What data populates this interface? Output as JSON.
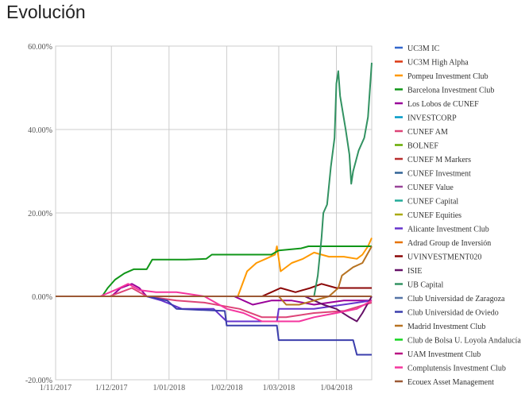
{
  "chart_data": {
    "type": "line",
    "title": "Evolución",
    "xlabel": "",
    "ylabel": "",
    "x_ticks": [
      "1/11/2017",
      "1/12/2017",
      "1/01/2018",
      "1/02/2018",
      "1/03/2018",
      "1/04/2018"
    ],
    "y_ticks": [
      "60.00%",
      "40.00%",
      "20.00%",
      "0.00%",
      "-20.00%"
    ],
    "x_range": [
      "2017-11-01",
      "2018-04-20"
    ],
    "ylim": [
      -20,
      60
    ],
    "grid": true,
    "legend_position": "right",
    "series": [
      {
        "name": "UC3M IC",
        "color": "#3366cc",
        "points": [
          [
            "2017-11-01",
            0
          ],
          [
            "2018-04-20",
            0
          ]
        ]
      },
      {
        "name": "UC3M High Alpha",
        "color": "#dc3912",
        "points": [
          [
            "2017-11-01",
            0
          ],
          [
            "2018-04-20",
            0
          ]
        ]
      },
      {
        "name": "Pompeu Investment Club",
        "color": "#ff9900",
        "points": [
          [
            "2017-11-01",
            0
          ],
          [
            "2018-02-07",
            0
          ],
          [
            "2018-02-12",
            6
          ],
          [
            "2018-02-17",
            8
          ],
          [
            "2018-02-22",
            9
          ],
          [
            "2018-02-27",
            10
          ],
          [
            "2018-02-28",
            12
          ],
          [
            "2018-03-02",
            6
          ],
          [
            "2018-03-08",
            8
          ],
          [
            "2018-03-14",
            9
          ],
          [
            "2018-03-20",
            10.5
          ],
          [
            "2018-03-28",
            9.5
          ],
          [
            "2018-04-05",
            9.5
          ],
          [
            "2018-04-12",
            9
          ],
          [
            "2018-04-15",
            10
          ],
          [
            "2018-04-18",
            12
          ],
          [
            "2018-04-20",
            14
          ]
        ]
      },
      {
        "name": "Barcelona Investment Club",
        "color": "#109618",
        "points": [
          [
            "2017-11-01",
            0
          ],
          [
            "2017-11-26",
            0
          ],
          [
            "2017-11-29",
            2
          ],
          [
            "2017-12-03",
            4
          ],
          [
            "2017-12-08",
            5.5
          ],
          [
            "2017-12-13",
            6.5
          ],
          [
            "2017-12-20",
            6.5
          ],
          [
            "2017-12-23",
            8.8
          ],
          [
            "2018-01-10",
            8.8
          ],
          [
            "2018-01-21",
            9
          ],
          [
            "2018-01-24",
            10
          ],
          [
            "2018-02-25",
            10
          ],
          [
            "2018-03-01",
            11
          ],
          [
            "2018-03-13",
            11.5
          ],
          [
            "2018-03-17",
            12
          ],
          [
            "2018-04-20",
            12
          ]
        ]
      },
      {
        "name": "Los Lobos de CUNEF",
        "color": "#990099",
        "points": [
          [
            "2017-11-01",
            0
          ],
          [
            "2017-12-01",
            0
          ],
          [
            "2017-12-06",
            2
          ],
          [
            "2017-12-12",
            3
          ],
          [
            "2017-12-16",
            2
          ],
          [
            "2017-12-20",
            0
          ],
          [
            "2018-02-05",
            0
          ],
          [
            "2018-02-15",
            -2
          ],
          [
            "2018-02-25",
            -1
          ],
          [
            "2018-03-08",
            -1
          ],
          [
            "2018-03-20",
            -2
          ],
          [
            "2018-04-05",
            -1
          ],
          [
            "2018-04-20",
            -1
          ]
        ]
      },
      {
        "name": "INVESTCORP",
        "color": "#0099c6",
        "points": [
          [
            "2017-11-01",
            0
          ],
          [
            "2018-04-20",
            0
          ]
        ]
      },
      {
        "name": "CUNEF AM",
        "color": "#dd4477",
        "points": [
          [
            "2017-11-01",
            0
          ],
          [
            "2017-11-30",
            0
          ],
          [
            "2017-12-06",
            1
          ],
          [
            "2017-12-12",
            2
          ],
          [
            "2017-12-20",
            0
          ],
          [
            "2018-01-05",
            -1
          ],
          [
            "2018-01-20",
            -1.5
          ],
          [
            "2018-02-08",
            -3
          ],
          [
            "2018-02-20",
            -5
          ],
          [
            "2018-03-05",
            -5
          ],
          [
            "2018-03-20",
            -4
          ],
          [
            "2018-04-05",
            -3.5
          ],
          [
            "2018-04-20",
            -1.5
          ]
        ]
      },
      {
        "name": "BOLNEF",
        "color": "#66aa00",
        "points": [
          [
            "2017-11-01",
            0
          ],
          [
            "2018-04-20",
            0
          ]
        ]
      },
      {
        "name": "CUNEF M Markers",
        "color": "#b82e2e",
        "points": [
          [
            "2017-11-01",
            0
          ],
          [
            "2018-04-20",
            0
          ]
        ]
      },
      {
        "name": "CUNEF Investment",
        "color": "#316395",
        "points": [
          [
            "2017-11-01",
            0
          ],
          [
            "2018-04-20",
            0
          ]
        ]
      },
      {
        "name": "CUNEF Value",
        "color": "#994499",
        "points": [
          [
            "2017-11-01",
            0
          ],
          [
            "2018-04-20",
            0
          ]
        ]
      },
      {
        "name": "CUNEF Capital",
        "color": "#22aa99",
        "points": [
          [
            "2017-11-01",
            0
          ],
          [
            "2018-04-20",
            0
          ]
        ]
      },
      {
        "name": "CUNEF Equities",
        "color": "#aaaa11",
        "points": [
          [
            "2017-11-01",
            0
          ],
          [
            "2018-04-20",
            0
          ]
        ]
      },
      {
        "name": "Alicante Investment Club",
        "color": "#6633cc",
        "points": [
          [
            "2017-11-01",
            0
          ],
          [
            "2017-12-20",
            0
          ],
          [
            "2017-12-28",
            -1
          ],
          [
            "2018-01-08",
            -3
          ],
          [
            "2018-01-25",
            -3
          ],
          [
            "2018-02-01",
            -6
          ],
          [
            "2018-02-28",
            -6
          ],
          [
            "2018-03-01",
            -3
          ],
          [
            "2018-03-20",
            -3
          ],
          [
            "2018-04-20",
            -1
          ]
        ]
      },
      {
        "name": "Adrad Group de Inversión",
        "color": "#e67300",
        "points": [
          [
            "2017-11-01",
            0
          ],
          [
            "2018-04-20",
            0
          ]
        ]
      },
      {
        "name": "UVINVESTMENT020",
        "color": "#8b0707",
        "points": [
          [
            "2017-11-01",
            0
          ],
          [
            "2018-02-20",
            0
          ],
          [
            "2018-02-25",
            1
          ],
          [
            "2018-03-02",
            2
          ],
          [
            "2018-03-10",
            1
          ],
          [
            "2018-03-18",
            2
          ],
          [
            "2018-03-24",
            3
          ],
          [
            "2018-04-01",
            2
          ],
          [
            "2018-04-10",
            2
          ],
          [
            "2018-04-20",
            2
          ]
        ]
      },
      {
        "name": "ISIE",
        "color": "#651067",
        "points": [
          [
            "2017-11-01",
            0
          ],
          [
            "2018-03-15",
            0
          ],
          [
            "2018-03-25",
            -2
          ],
          [
            "2018-04-01",
            -3
          ],
          [
            "2018-04-08",
            -5
          ],
          [
            "2018-04-12",
            -6
          ],
          [
            "2018-04-15",
            -4
          ],
          [
            "2018-04-20",
            0
          ]
        ]
      },
      {
        "name": "UB Capital",
        "color": "#329262",
        "points": [
          [
            "2017-11-01",
            0
          ],
          [
            "2018-03-20",
            0
          ],
          [
            "2018-03-22",
            5
          ],
          [
            "2018-03-24",
            14
          ],
          [
            "2018-03-25",
            20
          ],
          [
            "2018-03-27",
            22
          ],
          [
            "2018-03-29",
            31
          ],
          [
            "2018-03-31",
            38
          ],
          [
            "2018-04-01",
            51
          ],
          [
            "2018-04-02",
            54
          ],
          [
            "2018-04-03",
            48
          ],
          [
            "2018-04-06",
            40
          ],
          [
            "2018-04-08",
            34
          ],
          [
            "2018-04-09",
            27
          ],
          [
            "2018-04-10",
            30
          ],
          [
            "2018-04-13",
            35
          ],
          [
            "2018-04-16",
            38
          ],
          [
            "2018-04-18",
            43
          ],
          [
            "2018-04-20",
            56
          ]
        ]
      },
      {
        "name": "Club Universidad de Zaragoza",
        "color": "#5574a6",
        "points": [
          [
            "2017-11-01",
            0
          ],
          [
            "2018-04-20",
            0
          ]
        ]
      },
      {
        "name": "Club Universidad de Oviedo",
        "color": "#3b3eac",
        "points": [
          [
            "2017-11-01",
            0
          ],
          [
            "2017-12-20",
            0
          ],
          [
            "2017-12-31",
            -1
          ],
          [
            "2018-01-05",
            -3
          ],
          [
            "2018-01-31",
            -3.5
          ],
          [
            "2018-02-01",
            -7
          ],
          [
            "2018-02-28",
            -7
          ],
          [
            "2018-03-01",
            -10.5
          ],
          [
            "2018-04-10",
            -10.5
          ],
          [
            "2018-04-12",
            -14
          ],
          [
            "2018-04-20",
            -14
          ]
        ]
      },
      {
        "name": "Madrid Investment Club",
        "color": "#b77322",
        "points": [
          [
            "2017-11-01",
            0
          ],
          [
            "2018-03-01",
            0
          ],
          [
            "2018-03-05",
            -2
          ],
          [
            "2018-03-12",
            -2
          ],
          [
            "2018-03-20",
            -1
          ],
          [
            "2018-03-28",
            0
          ],
          [
            "2018-04-02",
            2
          ],
          [
            "2018-04-04",
            5
          ],
          [
            "2018-04-10",
            7
          ],
          [
            "2018-04-15",
            8
          ],
          [
            "2018-04-20",
            12
          ]
        ]
      },
      {
        "name": "Club de Bolsa U. Loyola Andalucía",
        "color": "#16d620",
        "points": [
          [
            "2017-11-01",
            0
          ],
          [
            "2018-04-20",
            0
          ]
        ]
      },
      {
        "name": "UAM Investment Club",
        "color": "#b91383",
        "points": [
          [
            "2017-11-01",
            0
          ],
          [
            "2018-04-20",
            0
          ]
        ]
      },
      {
        "name": "Complutensis Investment Club",
        "color": "#f4359e",
        "points": [
          [
            "2017-11-01",
            0
          ],
          [
            "2017-11-25",
            0
          ],
          [
            "2017-12-03",
            1.5
          ],
          [
            "2017-12-10",
            3
          ],
          [
            "2017-12-16",
            1.5
          ],
          [
            "2017-12-25",
            1
          ],
          [
            "2018-01-05",
            1
          ],
          [
            "2018-01-20",
            0
          ],
          [
            "2018-02-01",
            -3
          ],
          [
            "2018-02-10",
            -4
          ],
          [
            "2018-02-20",
            -6
          ],
          [
            "2018-03-01",
            -6
          ],
          [
            "2018-03-12",
            -6
          ],
          [
            "2018-03-20",
            -5
          ],
          [
            "2018-04-01",
            -4
          ],
          [
            "2018-04-12",
            -3
          ],
          [
            "2018-04-20",
            -1
          ]
        ]
      },
      {
        "name": "Ecouex Asset Management",
        "color": "#9c5935",
        "points": [
          [
            "2017-11-01",
            0
          ],
          [
            "2018-04-20",
            0
          ]
        ]
      }
    ]
  }
}
